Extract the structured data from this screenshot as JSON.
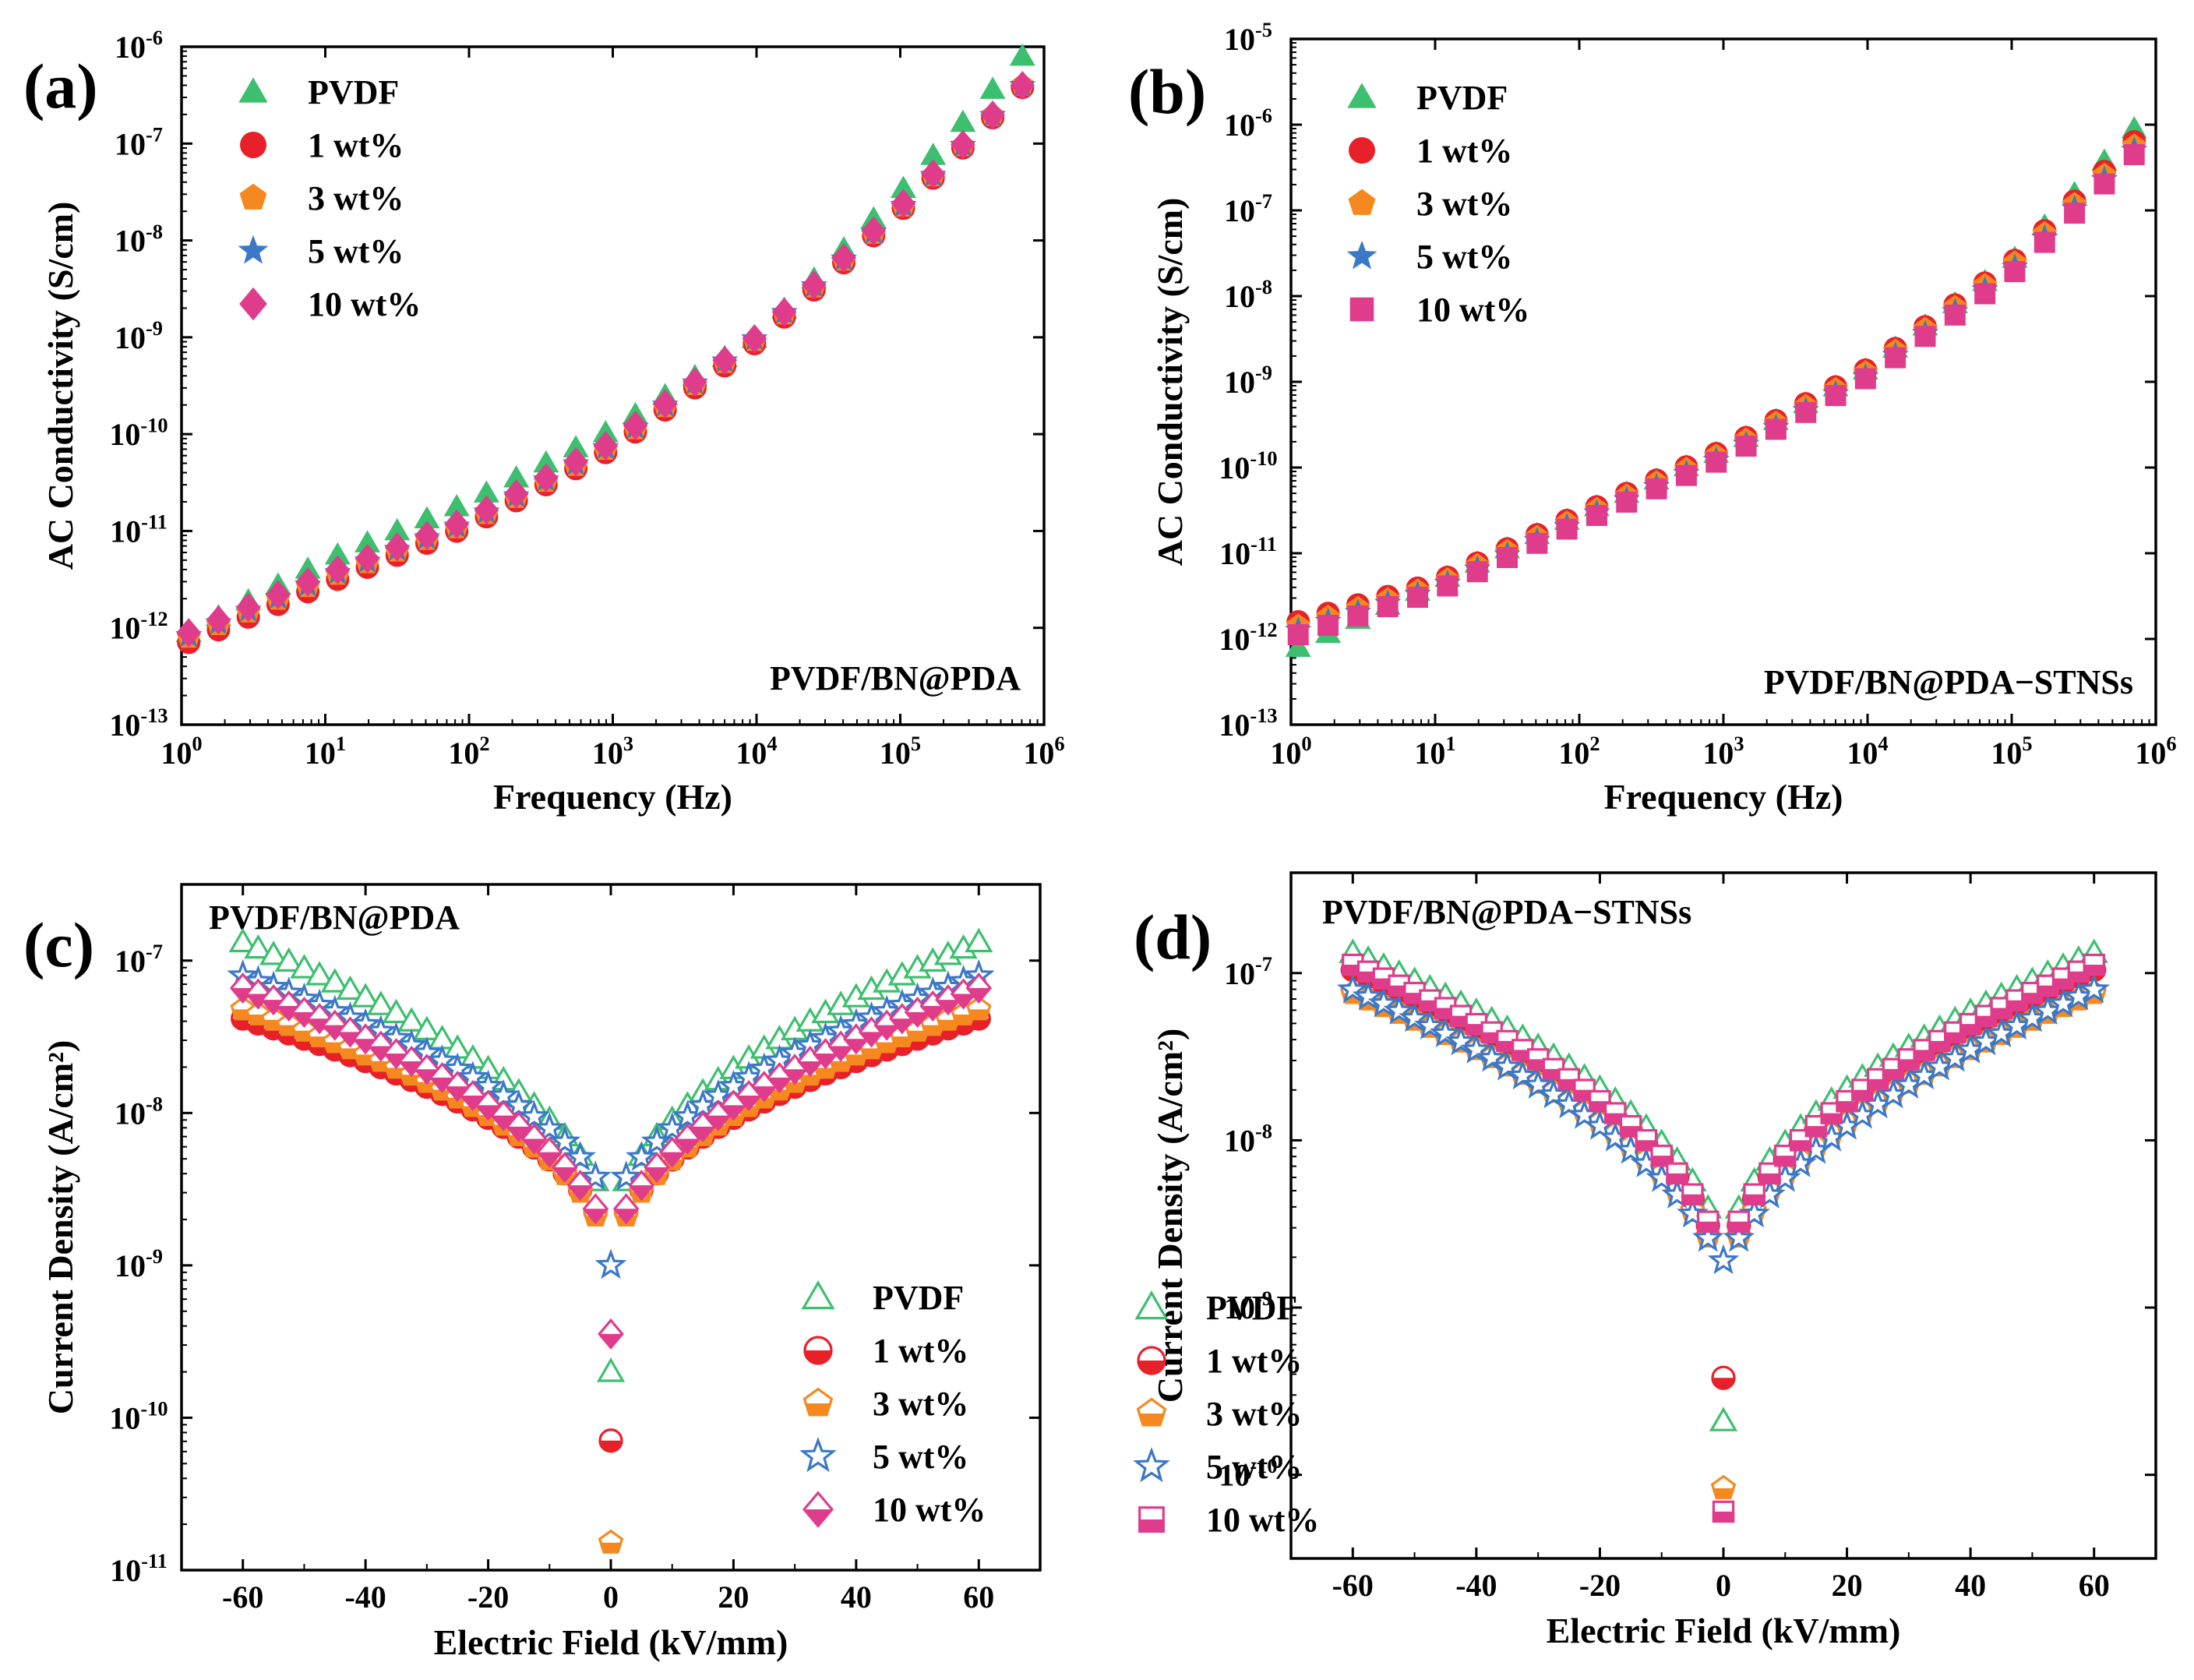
{
  "figure": {
    "caption": ""
  },
  "chart_data": [
    {
      "id": "a",
      "type": "scatter",
      "panel_label": "(a)",
      "annotation": "PVDF/BN@PDA",
      "xlabel": "Frequency (Hz)",
      "ylabel": "AC Conductivity (S/cm)",
      "xscale": "log",
      "yscale": "log",
      "xlim_exp": [
        0,
        6
      ],
      "ylim_exp": [
        -13,
        -6
      ],
      "x_ticks": [
        0,
        1,
        2,
        3,
        4,
        5,
        6
      ],
      "y_ticks": [
        -13,
        -12,
        -11,
        -10,
        -9,
        -8,
        -7,
        -6
      ],
      "x_curve": {
        "start_log": 0.05,
        "end_log": 5.85,
        "points": 29
      },
      "legend_position": "top-left",
      "series": [
        {
          "name": "PVDF",
          "marker": "triangle",
          "filled": true,
          "color": "#3cbf6e",
          "anchors_log_f": [
            0.05,
            1,
            2,
            3,
            4,
            5,
            5.85
          ],
          "anchors_log_sigma": [
            -12.05,
            -11.3,
            -10.7,
            -9.95,
            -9.0,
            -7.5,
            -6.1
          ]
        },
        {
          "name": "1 wt%",
          "marker": "circle",
          "filled": true,
          "color": "#e8202a",
          "anchors_log_f": [
            0.05,
            1,
            2,
            3,
            4,
            5,
            5.85
          ],
          "anchors_log_sigma": [
            -12.15,
            -11.55,
            -10.95,
            -10.15,
            -9.05,
            -7.7,
            -6.42
          ]
        },
        {
          "name": "3 wt%",
          "marker": "pentagon",
          "filled": true,
          "color": "#f5891f",
          "anchors_log_f": [
            0.05,
            1,
            2,
            3,
            4,
            5,
            5.85
          ],
          "anchors_log_sigma": [
            -12.1,
            -11.5,
            -10.92,
            -10.12,
            -9.02,
            -7.68,
            -6.4
          ]
        },
        {
          "name": "5 wt%",
          "marker": "star",
          "filled": true,
          "color": "#3c78c8",
          "anchors_log_f": [
            0.05,
            1,
            2,
            3,
            4,
            5,
            5.85
          ],
          "anchors_log_sigma": [
            -12.08,
            -11.48,
            -10.9,
            -10.1,
            -9.0,
            -7.67,
            -6.4
          ]
        },
        {
          "name": "10 wt%",
          "marker": "diamond",
          "filled": true,
          "color": "#e03c8c",
          "anchors_log_f": [
            0.05,
            1,
            2,
            3,
            4,
            5,
            5.85
          ],
          "anchors_log_sigma": [
            -12.05,
            -11.45,
            -10.88,
            -10.08,
            -9.0,
            -7.65,
            -6.4
          ]
        }
      ]
    },
    {
      "id": "b",
      "type": "scatter",
      "panel_label": "(b)",
      "annotation": "PVDF/BN@PDA−STNSs",
      "xlabel": "Frequency (Hz)",
      "ylabel": "AC Conductivity (S/cm)",
      "xscale": "log",
      "yscale": "log",
      "xlim_exp": [
        0,
        6
      ],
      "ylim_exp": [
        -13,
        -5
      ],
      "x_ticks": [
        0,
        1,
        2,
        3,
        4,
        5,
        6
      ],
      "y_ticks": [
        -13,
        -12,
        -11,
        -10,
        -9,
        -8,
        -7,
        -6,
        -5
      ],
      "x_curve": {
        "start_log": 0.05,
        "end_log": 5.85,
        "points": 29
      },
      "legend_position": "top-left",
      "series": [
        {
          "name": "PVDF",
          "marker": "triangle",
          "filled": true,
          "color": "#3cbf6e",
          "anchors_log_f": [
            0.05,
            1,
            2,
            3,
            4,
            5,
            5.85
          ],
          "anchors_log_sigma": [
            -12.1,
            -11.35,
            -10.55,
            -9.8,
            -8.85,
            -7.6,
            -6.05
          ]
        },
        {
          "name": "1 wt%",
          "marker": "circle",
          "filled": true,
          "color": "#e8202a",
          "anchors_log_f": [
            0.05,
            1,
            2,
            3,
            4,
            5,
            5.85
          ],
          "anchors_log_sigma": [
            -11.8,
            -11.35,
            -10.55,
            -9.8,
            -8.85,
            -7.62,
            -6.2
          ]
        },
        {
          "name": "3 wt%",
          "marker": "pentagon",
          "filled": true,
          "color": "#f5891f",
          "anchors_log_f": [
            0.05,
            1,
            2,
            3,
            4,
            5,
            5.85
          ],
          "anchors_log_sigma": [
            -11.85,
            -11.38,
            -10.58,
            -9.83,
            -8.88,
            -7.65,
            -6.25
          ]
        },
        {
          "name": "5 wt%",
          "marker": "star",
          "filled": true,
          "color": "#3c78c8",
          "anchors_log_f": [
            0.05,
            1,
            2,
            3,
            4,
            5,
            5.85
          ],
          "anchors_log_sigma": [
            -11.9,
            -11.42,
            -10.62,
            -9.88,
            -8.93,
            -7.7,
            -6.3
          ]
        },
        {
          "name": "10 wt%",
          "marker": "square",
          "filled": true,
          "color": "#e03c8c",
          "anchors_log_f": [
            0.05,
            1,
            2,
            3,
            4,
            5,
            5.85
          ],
          "anchors_log_sigma": [
            -11.95,
            -11.45,
            -10.65,
            -9.9,
            -8.95,
            -7.75,
            -6.35
          ]
        }
      ]
    },
    {
      "id": "c",
      "type": "scatter",
      "panel_label": "(c)",
      "annotation": "PVDF/BN@PDA",
      "xlabel": "Electric Field (kV/mm)",
      "ylabel": "Current Density (A/cm²)",
      "xscale": "linear",
      "yscale": "log",
      "xlim": [
        -70,
        70
      ],
      "ylim_exp": [
        -11,
        -6.5
      ],
      "x_ticks": [
        -60,
        -40,
        -20,
        0,
        20,
        40,
        60
      ],
      "y_ticks": [
        -11,
        -10,
        -9,
        -8,
        -7
      ],
      "legend_position": "bottom-right",
      "series": [
        {
          "name": "PVDF",
          "marker": "triangle",
          "filled": false,
          "color": "#3cbf6e",
          "end_log_j": -6.88,
          "min_log_j": -8.85,
          "center_log_j": -9.7,
          "alpha": 0.5
        },
        {
          "name": "1 wt%",
          "marker": "circle",
          "filled": false,
          "color": "#e8202a",
          "end_log_j": -7.38,
          "min_log_j": -9.05,
          "center_log_j": -10.15,
          "alpha": 0.45
        },
        {
          "name": "3 wt%",
          "marker": "pentagon",
          "filled": false,
          "color": "#f5891f",
          "end_log_j": -7.32,
          "min_log_j": -9.1,
          "center_log_j": -10.82,
          "alpha": 0.45
        },
        {
          "name": "5 wt%",
          "marker": "star",
          "filled": false,
          "color": "#3c78c8",
          "end_log_j": -7.1,
          "min_log_j": -8.7,
          "center_log_j": -9.0,
          "alpha": 0.55
        },
        {
          "name": "10 wt%",
          "marker": "diamond",
          "filled": false,
          "color": "#e03c8c",
          "end_log_j": -7.18,
          "min_log_j": -9.0,
          "center_log_j": -9.45,
          "alpha": 0.5
        }
      ]
    },
    {
      "id": "d",
      "type": "scatter",
      "panel_label": "(d)",
      "annotation": "PVDF/BN@PDA−STNSs",
      "xlabel": "Electric Field (kV/mm)",
      "ylabel": "Current Density (A/cm²)",
      "xscale": "linear",
      "yscale": "log",
      "xlim": [
        -70,
        70
      ],
      "ylim_exp": [
        -10.5,
        -6.4
      ],
      "x_ticks": [
        -60,
        -40,
        -20,
        0,
        20,
        40,
        60
      ],
      "y_ticks": [
        -10,
        -9,
        -8,
        -7
      ],
      "legend_position": "bottom-right",
      "series": [
        {
          "name": "PVDF",
          "marker": "triangle",
          "filled": false,
          "color": "#3cbf6e",
          "end_log_j": -6.88,
          "min_log_j": -8.8,
          "center_log_j": -9.68,
          "alpha": 0.5
        },
        {
          "name": "1 wt%",
          "marker": "circle",
          "filled": false,
          "color": "#e8202a",
          "end_log_j": -6.98,
          "min_log_j": -8.9,
          "center_log_j": -9.42,
          "alpha": 0.5
        },
        {
          "name": "3 wt%",
          "marker": "pentagon",
          "filled": false,
          "color": "#f5891f",
          "end_log_j": -7.12,
          "min_log_j": -8.95,
          "center_log_j": -10.08,
          "alpha": 0.5
        },
        {
          "name": "5 wt%",
          "marker": "star",
          "filled": false,
          "color": "#3c78c8",
          "end_log_j": -7.1,
          "min_log_j": -8.9,
          "center_log_j": -8.72,
          "alpha": 0.55
        },
        {
          "name": "10 wt%",
          "marker": "square",
          "filled": false,
          "color": "#e03c8c",
          "end_log_j": -6.95,
          "min_log_j": -8.88,
          "center_log_j": -10.22,
          "alpha": 0.5
        }
      ]
    }
  ]
}
